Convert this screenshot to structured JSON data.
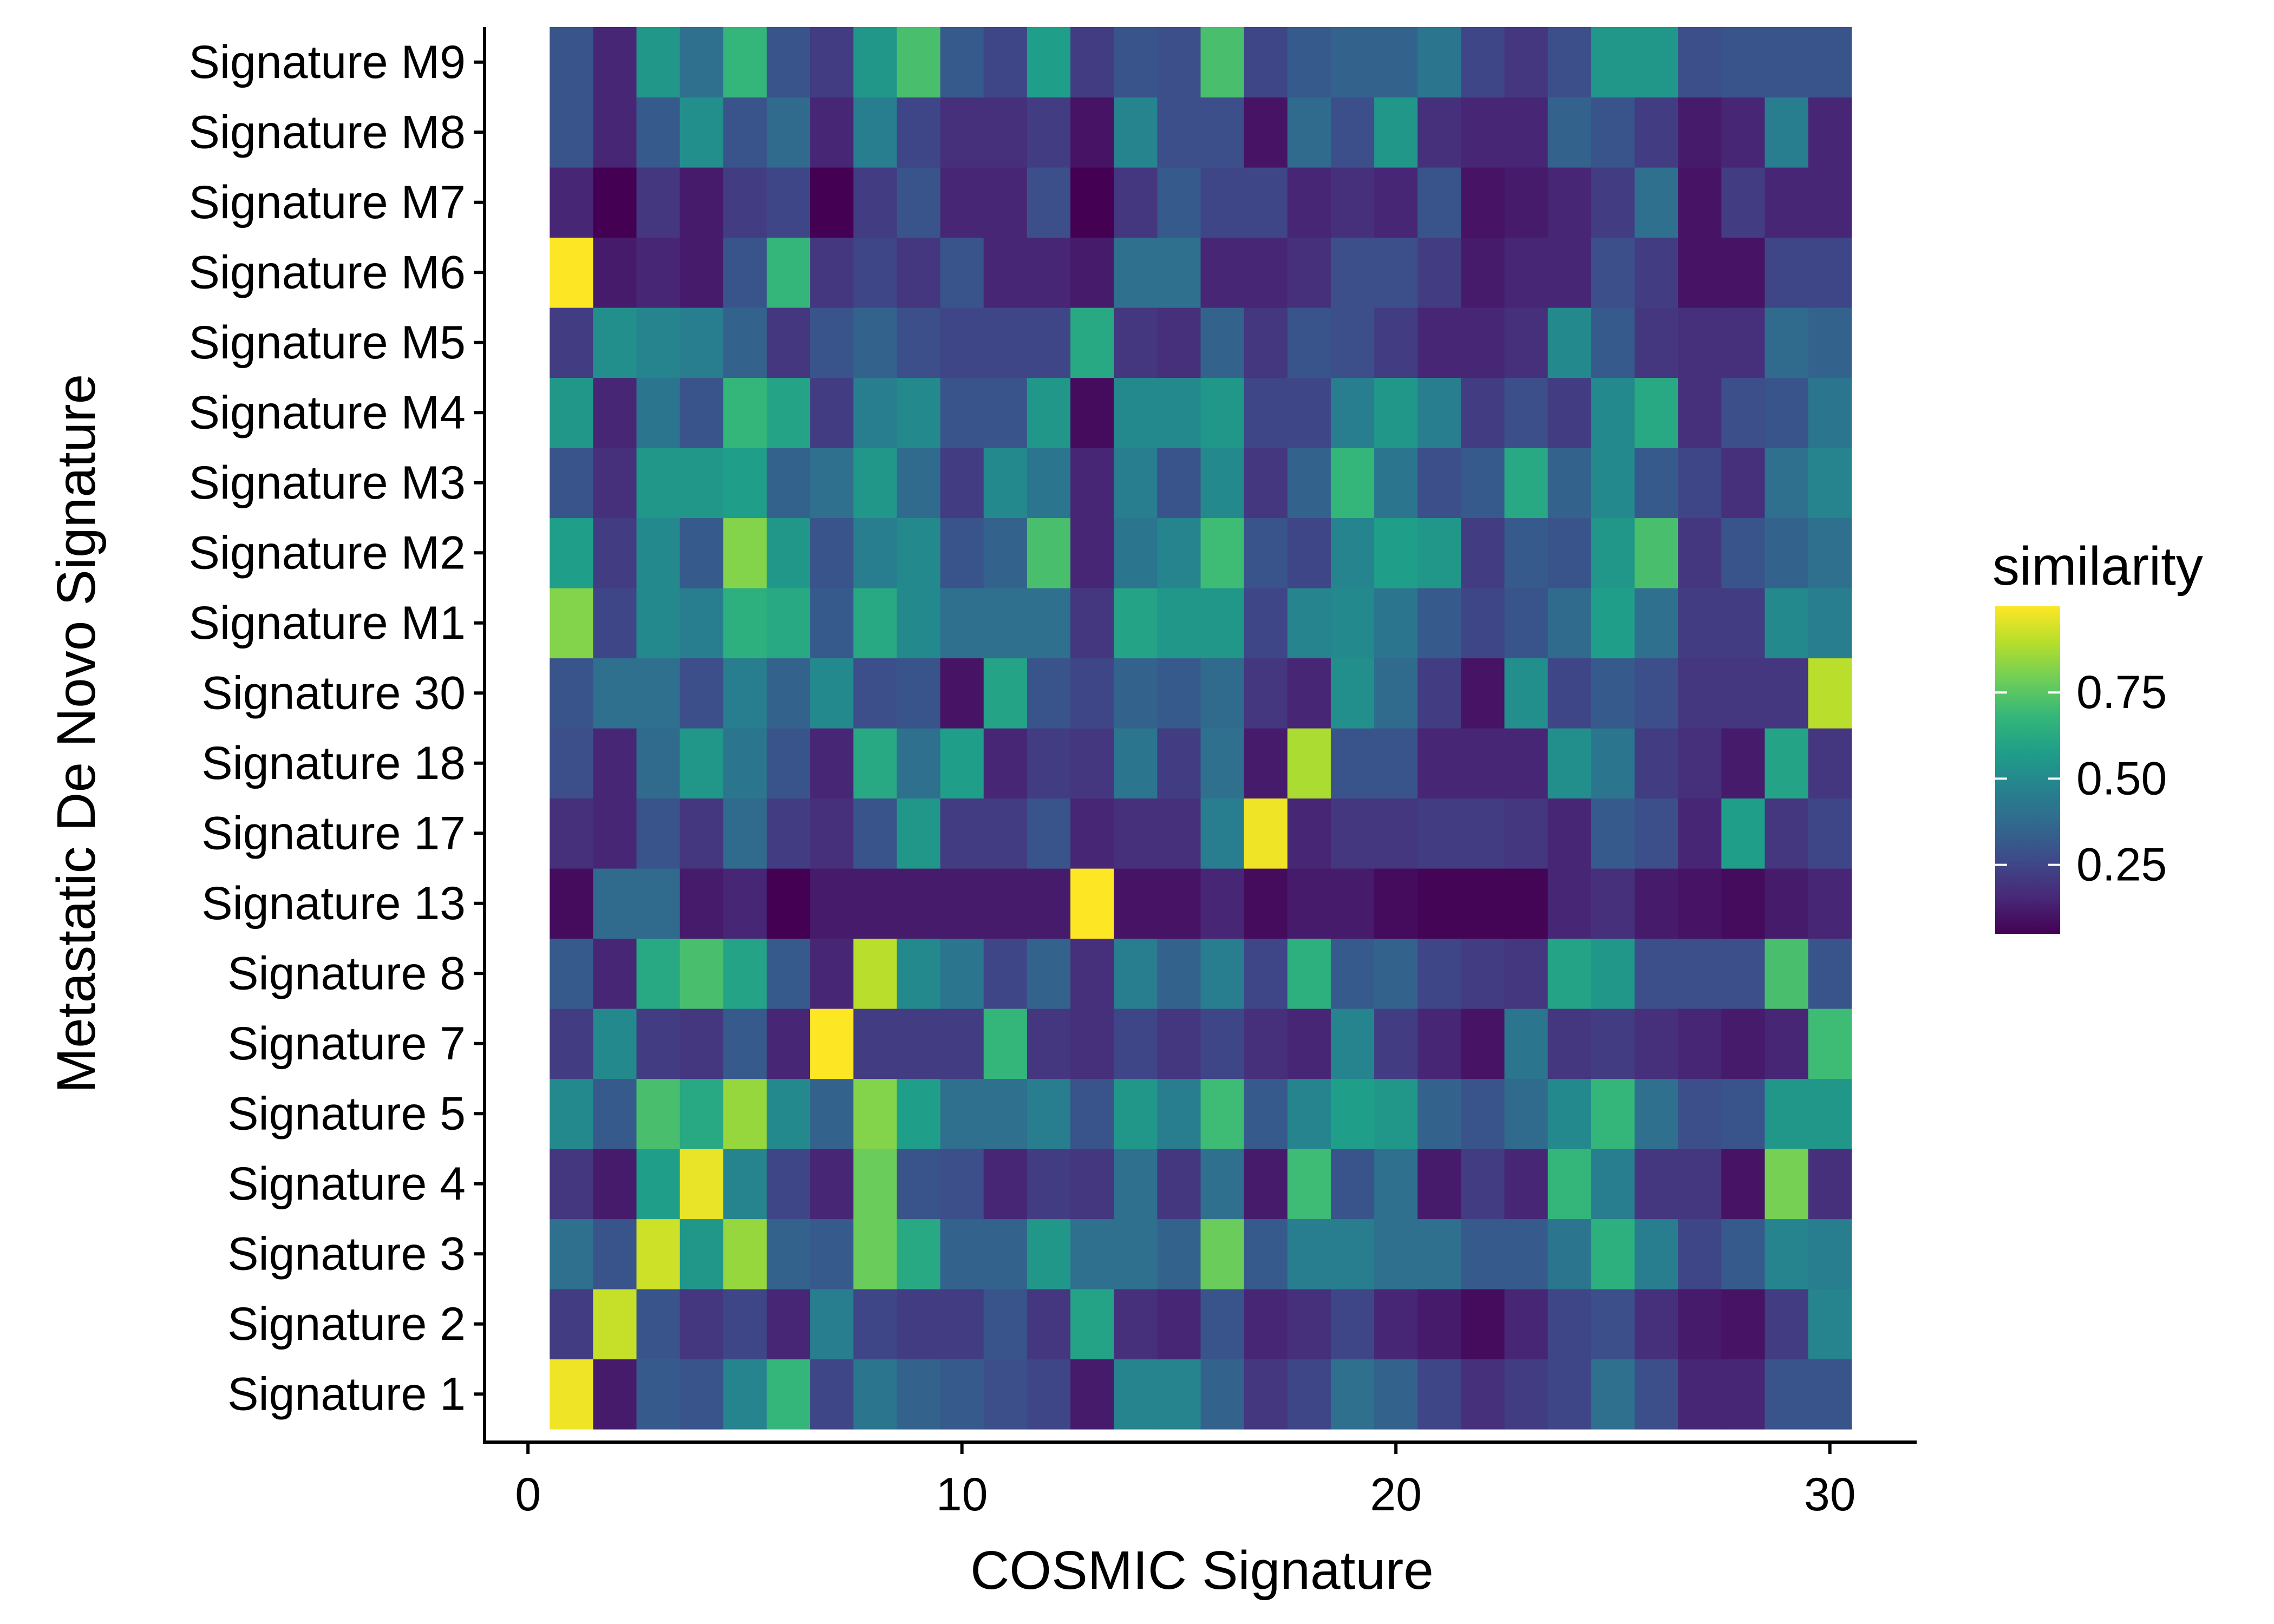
{
  "chart_data": {
    "type": "heatmap",
    "xlabel": "COSMIC Signature",
    "ylabel": "Metastatic De Novo Signature",
    "x": [
      1,
      2,
      3,
      4,
      5,
      6,
      7,
      8,
      9,
      10,
      11,
      12,
      13,
      14,
      15,
      16,
      17,
      18,
      19,
      20,
      21,
      22,
      23,
      24,
      25,
      26,
      27,
      28,
      29,
      30
    ],
    "xlim": [
      -1,
      32
    ],
    "xticks": [
      0,
      10,
      20,
      30
    ],
    "xtick_labels": [
      "0",
      "10",
      "20",
      "30"
    ],
    "rows": [
      "Signature 1",
      "Signature 2",
      "Signature 3",
      "Signature 4",
      "Signature 5",
      "Signature 7",
      "Signature 8",
      "Signature 13",
      "Signature 17",
      "Signature 18",
      "Signature 30",
      "Signature M1",
      "Signature M2",
      "Signature M3",
      "Signature M4",
      "Signature M5",
      "Signature M6",
      "Signature M7",
      "Signature M8",
      "Signature M9"
    ],
    "values": [
      [
        0.98,
        0.12,
        0.32,
        0.3,
        0.48,
        0.68,
        0.25,
        0.42,
        0.35,
        0.32,
        0.28,
        0.25,
        0.12,
        0.48,
        0.48,
        0.35,
        0.2,
        0.25,
        0.4,
        0.35,
        0.25,
        0.18,
        0.22,
        0.25,
        0.4,
        0.28,
        0.15,
        0.15,
        0.3,
        0.3
      ],
      [
        0.22,
        0.92,
        0.3,
        0.2,
        0.25,
        0.15,
        0.45,
        0.25,
        0.22,
        0.22,
        0.3,
        0.2,
        0.6,
        0.18,
        0.15,
        0.3,
        0.15,
        0.18,
        0.25,
        0.15,
        0.12,
        0.08,
        0.15,
        0.25,
        0.28,
        0.18,
        0.12,
        0.1,
        0.22,
        0.48
      ],
      [
        0.4,
        0.3,
        0.93,
        0.55,
        0.85,
        0.35,
        0.32,
        0.78,
        0.62,
        0.35,
        0.35,
        0.55,
        0.4,
        0.4,
        0.35,
        0.78,
        0.32,
        0.45,
        0.45,
        0.4,
        0.4,
        0.32,
        0.32,
        0.42,
        0.65,
        0.45,
        0.25,
        0.32,
        0.48,
        0.45
      ],
      [
        0.2,
        0.12,
        0.58,
        0.97,
        0.48,
        0.25,
        0.15,
        0.78,
        0.3,
        0.28,
        0.15,
        0.22,
        0.2,
        0.4,
        0.2,
        0.4,
        0.12,
        0.7,
        0.3,
        0.4,
        0.12,
        0.22,
        0.15,
        0.68,
        0.45,
        0.2,
        0.2,
        0.1,
        0.8,
        0.18
      ],
      [
        0.5,
        0.32,
        0.72,
        0.62,
        0.85,
        0.5,
        0.35,
        0.82,
        0.58,
        0.4,
        0.4,
        0.45,
        0.3,
        0.55,
        0.45,
        0.7,
        0.32,
        0.48,
        0.58,
        0.55,
        0.35,
        0.3,
        0.38,
        0.5,
        0.68,
        0.4,
        0.28,
        0.3,
        0.55,
        0.55
      ],
      [
        0.22,
        0.5,
        0.22,
        0.2,
        0.32,
        0.15,
        1.0,
        0.22,
        0.22,
        0.22,
        0.68,
        0.2,
        0.18,
        0.25,
        0.2,
        0.25,
        0.18,
        0.15,
        0.48,
        0.22,
        0.15,
        0.1,
        0.42,
        0.2,
        0.22,
        0.18,
        0.15,
        0.12,
        0.15,
        0.7
      ],
      [
        0.32,
        0.15,
        0.62,
        0.72,
        0.6,
        0.32,
        0.15,
        0.9,
        0.5,
        0.42,
        0.25,
        0.35,
        0.18,
        0.45,
        0.35,
        0.45,
        0.25,
        0.65,
        0.32,
        0.35,
        0.25,
        0.22,
        0.2,
        0.6,
        0.55,
        0.28,
        0.28,
        0.28,
        0.72,
        0.3
      ],
      [
        0.08,
        0.38,
        0.38,
        0.12,
        0.15,
        0.05,
        0.12,
        0.12,
        0.12,
        0.12,
        0.12,
        0.12,
        1.0,
        0.1,
        0.1,
        0.15,
        0.08,
        0.12,
        0.12,
        0.08,
        0.06,
        0.06,
        0.06,
        0.15,
        0.18,
        0.12,
        0.1,
        0.08,
        0.12,
        0.15
      ],
      [
        0.18,
        0.15,
        0.3,
        0.2,
        0.38,
        0.22,
        0.18,
        0.3,
        0.55,
        0.22,
        0.22,
        0.3,
        0.15,
        0.18,
        0.18,
        0.45,
        0.98,
        0.15,
        0.2,
        0.2,
        0.22,
        0.22,
        0.2,
        0.15,
        0.32,
        0.28,
        0.15,
        0.58,
        0.2,
        0.25
      ],
      [
        0.28,
        0.15,
        0.38,
        0.55,
        0.42,
        0.3,
        0.15,
        0.62,
        0.4,
        0.58,
        0.15,
        0.22,
        0.2,
        0.42,
        0.22,
        0.4,
        0.12,
        0.88,
        0.3,
        0.3,
        0.15,
        0.15,
        0.15,
        0.52,
        0.42,
        0.22,
        0.18,
        0.12,
        0.6,
        0.2
      ],
      [
        0.3,
        0.4,
        0.4,
        0.28,
        0.45,
        0.35,
        0.5,
        0.28,
        0.3,
        0.1,
        0.6,
        0.3,
        0.25,
        0.35,
        0.32,
        0.38,
        0.2,
        0.15,
        0.52,
        0.38,
        0.22,
        0.1,
        0.52,
        0.25,
        0.32,
        0.28,
        0.2,
        0.2,
        0.2,
        0.9
      ],
      [
        0.82,
        0.25,
        0.5,
        0.45,
        0.65,
        0.62,
        0.32,
        0.62,
        0.5,
        0.4,
        0.4,
        0.4,
        0.2,
        0.6,
        0.55,
        0.55,
        0.25,
        0.48,
        0.5,
        0.42,
        0.32,
        0.25,
        0.3,
        0.38,
        0.58,
        0.4,
        0.22,
        0.22,
        0.5,
        0.45
      ],
      [
        0.58,
        0.22,
        0.5,
        0.32,
        0.82,
        0.55,
        0.3,
        0.45,
        0.5,
        0.3,
        0.35,
        0.72,
        0.15,
        0.42,
        0.48,
        0.7,
        0.3,
        0.25,
        0.48,
        0.58,
        0.55,
        0.22,
        0.32,
        0.3,
        0.55,
        0.72,
        0.2,
        0.3,
        0.35,
        0.4
      ],
      [
        0.3,
        0.18,
        0.55,
        0.55,
        0.58,
        0.35,
        0.4,
        0.55,
        0.38,
        0.22,
        0.5,
        0.42,
        0.15,
        0.45,
        0.3,
        0.5,
        0.2,
        0.35,
        0.68,
        0.42,
        0.28,
        0.32,
        0.62,
        0.35,
        0.5,
        0.32,
        0.25,
        0.18,
        0.4,
        0.48
      ],
      [
        0.55,
        0.15,
        0.42,
        0.3,
        0.68,
        0.6,
        0.22,
        0.45,
        0.5,
        0.3,
        0.3,
        0.55,
        0.08,
        0.5,
        0.5,
        0.55,
        0.25,
        0.25,
        0.45,
        0.55,
        0.45,
        0.22,
        0.28,
        0.22,
        0.5,
        0.62,
        0.18,
        0.28,
        0.3,
        0.42
      ],
      [
        0.22,
        0.52,
        0.48,
        0.45,
        0.35,
        0.2,
        0.3,
        0.35,
        0.28,
        0.25,
        0.25,
        0.25,
        0.62,
        0.2,
        0.18,
        0.35,
        0.2,
        0.3,
        0.28,
        0.22,
        0.15,
        0.15,
        0.18,
        0.5,
        0.32,
        0.2,
        0.18,
        0.18,
        0.38,
        0.35
      ],
      [
        1.0,
        0.12,
        0.15,
        0.12,
        0.3,
        0.68,
        0.2,
        0.25,
        0.2,
        0.3,
        0.15,
        0.15,
        0.12,
        0.4,
        0.4,
        0.15,
        0.15,
        0.18,
        0.28,
        0.28,
        0.22,
        0.12,
        0.15,
        0.15,
        0.28,
        0.22,
        0.1,
        0.1,
        0.25,
        0.25
      ],
      [
        0.15,
        0.05,
        0.2,
        0.12,
        0.22,
        0.25,
        0.05,
        0.22,
        0.3,
        0.15,
        0.15,
        0.28,
        0.05,
        0.2,
        0.32,
        0.25,
        0.25,
        0.15,
        0.18,
        0.15,
        0.3,
        0.1,
        0.12,
        0.15,
        0.22,
        0.4,
        0.1,
        0.22,
        0.15,
        0.15
      ],
      [
        0.3,
        0.15,
        0.32,
        0.52,
        0.3,
        0.38,
        0.15,
        0.45,
        0.25,
        0.18,
        0.18,
        0.22,
        0.1,
        0.48,
        0.28,
        0.28,
        0.1,
        0.38,
        0.28,
        0.55,
        0.18,
        0.15,
        0.15,
        0.35,
        0.3,
        0.22,
        0.12,
        0.15,
        0.45,
        0.15
      ],
      [
        0.3,
        0.15,
        0.55,
        0.4,
        0.68,
        0.3,
        0.22,
        0.55,
        0.72,
        0.32,
        0.25,
        0.58,
        0.22,
        0.3,
        0.28,
        0.72,
        0.25,
        0.32,
        0.35,
        0.35,
        0.42,
        0.25,
        0.2,
        0.28,
        0.55,
        0.55,
        0.28,
        0.3,
        0.3,
        0.3
      ]
    ],
    "legend": {
      "title": "similarity",
      "placement": "right",
      "ticks": [
        0.25,
        0.5,
        0.75
      ],
      "tick_labels": [
        "0.25",
        "0.50",
        "0.75"
      ],
      "range": [
        0.05,
        1.0
      ]
    },
    "colorscale": [
      "#440154",
      "#482878",
      "#3e4989",
      "#31688e",
      "#26828e",
      "#1f9e89",
      "#35b779",
      "#6ece58",
      "#b5de2b",
      "#fde725"
    ],
    "grid": false
  }
}
